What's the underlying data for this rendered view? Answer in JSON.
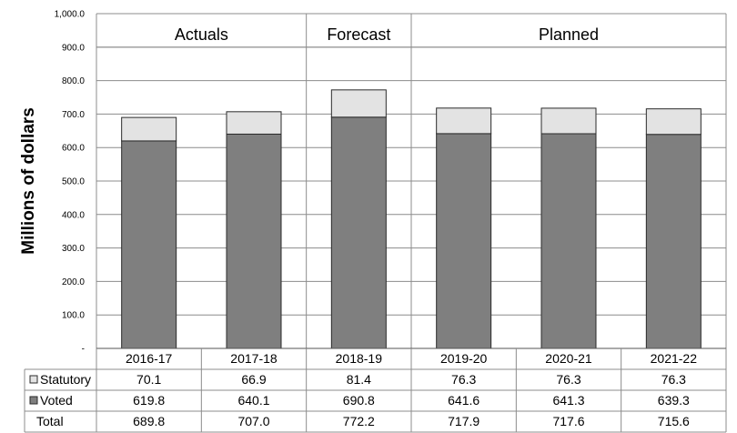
{
  "chart_data": {
    "type": "bar",
    "stacked": true,
    "categories": [
      "2016-17",
      "2017-18",
      "2018-19",
      "2019-20",
      "2020-21",
      "2021-22"
    ],
    "series": [
      {
        "name": "Voted",
        "values": [
          619.8,
          640.1,
          690.8,
          641.6,
          641.3,
          639.3
        ],
        "color": "#7f7f7f"
      },
      {
        "name": "Statutory",
        "values": [
          70.1,
          66.9,
          81.4,
          76.3,
          76.3,
          76.3
        ],
        "color": "#e3e3e3"
      }
    ],
    "totals_label": "Total",
    "totals": [
      "689.8",
      "707.0",
      "772.2",
      "717.9",
      "717.6",
      "715.6"
    ],
    "table_rows": [
      {
        "name": "Statutory",
        "values": [
          "70.1",
          "66.9",
          "81.4",
          "76.3",
          "76.3",
          "76.3"
        ]
      },
      {
        "name": "Voted",
        "values": [
          "619.8",
          "640.1",
          "690.8",
          "641.6",
          "641.3",
          "639.3"
        ]
      }
    ],
    "ylabel": "Millions of dollars",
    "ylim": [
      0,
      1000
    ],
    "yticks": [
      "-",
      "100.0",
      "200.0",
      "300.0",
      "400.0",
      "500.0",
      "600.0",
      "700.0",
      "800.0",
      "900.0",
      "1,000.0"
    ],
    "periods": [
      {
        "label": "Actuals",
        "categories": [
          "2016-17",
          "2017-18"
        ]
      },
      {
        "label": "Forecast",
        "categories": [
          "2018-19"
        ]
      },
      {
        "label": "Planned",
        "categories": [
          "2019-20",
          "2020-21",
          "2021-22"
        ]
      }
    ],
    "grid": true,
    "legend": "table-left"
  }
}
